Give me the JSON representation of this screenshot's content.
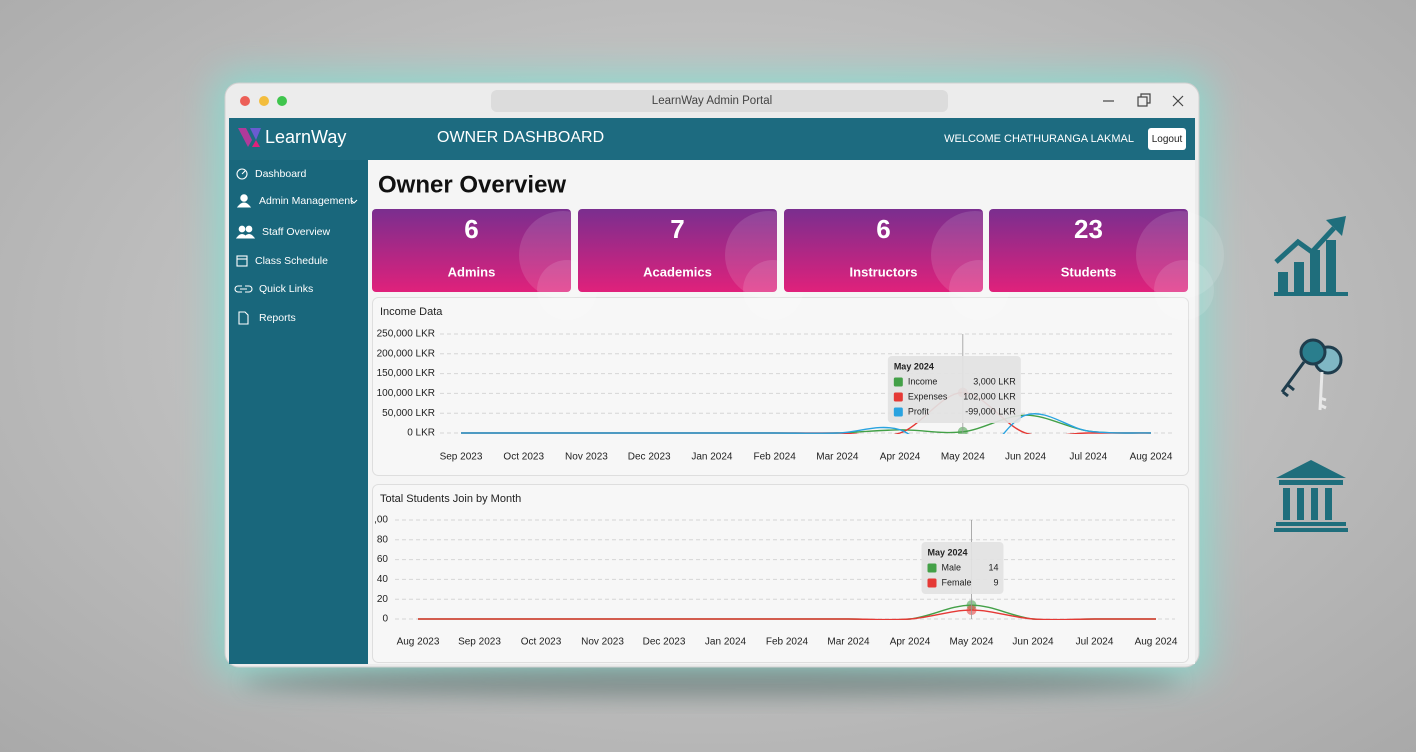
{
  "window": {
    "title": "LearnWay Admin Portal"
  },
  "header": {
    "brand": "LearnWay",
    "title": "OWNER DASHBOARD",
    "welcome": "WELCOME CHATHURANGA LAKMAL",
    "logout": "Logout"
  },
  "sidebar": [
    "Dashboard",
    "Admin Management",
    "Staff Overview",
    "Class Schedule",
    "Quick Links",
    "Reports"
  ],
  "page_title": "Owner Overview",
  "cards": [
    {
      "value": 6,
      "label": "Admins"
    },
    {
      "value": 7,
      "label": "Academics"
    },
    {
      "value": 6,
      "label": "Instructors"
    },
    {
      "value": 23,
      "label": "Students"
    }
  ],
  "chart_data": [
    {
      "type": "line",
      "title": "Income Data",
      "categories": [
        "Sep 2023",
        "Oct 2023",
        "Nov 2023",
        "Dec 2023",
        "Jan 2024",
        "Feb 2024",
        "Mar 2024",
        "Apr 2024",
        "May 2024",
        "Jun 2024",
        "Jul 2024",
        "Aug 2024"
      ],
      "series": [
        {
          "name": "Income",
          "color": "#43a047",
          "values": [
            0,
            0,
            0,
            0,
            0,
            0,
            0,
            8000,
            3000,
            45000,
            5000,
            0
          ],
          "value_labels": [
            null,
            null,
            null,
            null,
            null,
            null,
            null,
            null,
            "3,000 LKR",
            null,
            null,
            null
          ]
        },
        {
          "name": "Expenses",
          "color": "#e53935",
          "values": [
            0,
            0,
            0,
            0,
            0,
            0,
            0,
            0,
            102000,
            0,
            0,
            0
          ],
          "value_labels": [
            null,
            null,
            null,
            null,
            null,
            null,
            null,
            null,
            "102,000 LKR",
            null,
            null,
            null
          ]
        },
        {
          "name": "Profit",
          "color": "#29a3e0",
          "values": [
            0,
            0,
            0,
            0,
            0,
            0,
            0,
            8000,
            -99000,
            45000,
            5000,
            0
          ],
          "value_labels": [
            null,
            null,
            null,
            null,
            null,
            null,
            null,
            null,
            "-99,000 LKR",
            null,
            null,
            null
          ]
        }
      ],
      "ylim": [
        0,
        250000
      ],
      "yticks": [
        {
          "value": 0,
          "label": "0 LKR"
        },
        {
          "value": 50000,
          "label": "50,000 LKR"
        },
        {
          "value": 100000,
          "label": "100,000 LKR"
        },
        {
          "value": 150000,
          "label": "150,000 LKR"
        },
        {
          "value": 200000,
          "label": "200,000 LKR"
        },
        {
          "value": 250000,
          "label": "250,000 LKR"
        }
      ],
      "grid": true,
      "tooltip_title": "May 2024"
    },
    {
      "type": "line",
      "title": "Total Students Join by Month",
      "categories": [
        "Aug 2023",
        "Sep 2023",
        "Oct 2023",
        "Nov 2023",
        "Dec 2023",
        "Jan 2024",
        "Feb 2024",
        "Mar 2024",
        "Apr 2024",
        "May 2024",
        "Jun 2024",
        "Jul 2024",
        "Aug 2024"
      ],
      "series": [
        {
          "name": "Male",
          "color": "#43a047",
          "values": [
            0,
            0,
            0,
            0,
            0,
            0,
            0,
            0,
            0,
            14,
            0,
            0,
            0
          ]
        },
        {
          "name": "Female",
          "color": "#e53935",
          "values": [
            0,
            0,
            0,
            0,
            0,
            0,
            0,
            0,
            0,
            9,
            0,
            0,
            0
          ]
        }
      ],
      "ylim": [
        0,
        100
      ],
      "yticks": [
        0,
        20,
        40,
        60,
        80,
        {
          "value": 100,
          "label": ",00"
        }
      ],
      "grid": true,
      "tooltip_title": "May 2024"
    }
  ]
}
